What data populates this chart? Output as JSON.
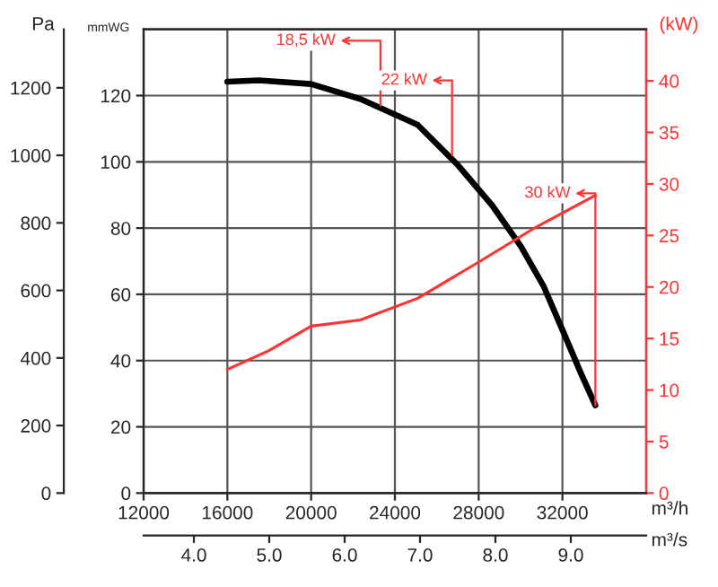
{
  "chart_data": {
    "type": "line",
    "xlabel": "m³/h",
    "x2label": "m³/s",
    "ylabel": "mmWG",
    "y2label": "(kW)",
    "y3label": "Pa",
    "xlim": [
      12000,
      36000
    ],
    "xticks": [
      12000,
      16000,
      20000,
      24000,
      28000,
      32000
    ],
    "x2lim": [
      3.333,
      10
    ],
    "x2ticks": [
      {
        "value": 4,
        "label": "4.0"
      },
      {
        "value": 5,
        "label": "5.0"
      },
      {
        "value": 6,
        "label": "6.0"
      },
      {
        "value": 7,
        "label": "7.0"
      },
      {
        "value": 8,
        "label": "8.0"
      },
      {
        "value": 9,
        "label": "9.0"
      }
    ],
    "ylim": [
      0,
      140
    ],
    "yticks": [
      0,
      20,
      40,
      60,
      80,
      100,
      120
    ],
    "y2lim": [
      0,
      45
    ],
    "y2ticks": [
      0,
      5,
      10,
      15,
      20,
      25,
      30,
      35,
      40
    ],
    "y3lim": [
      0,
      1373
    ],
    "y3ticks": [
      0,
      200,
      400,
      600,
      800,
      1000,
      1200
    ],
    "grid": true,
    "series": [
      {
        "color": "#000000",
        "x": [
          16000,
          17500,
          20000,
          22349,
          25085,
          27007,
          28649,
          30013,
          31113,
          32066,
          32887,
          33573
        ],
        "values": [
          124.2,
          124.6,
          123.5,
          119.0,
          111.2,
          99.0,
          86.8,
          74.5,
          62.3,
          48.3,
          36.1,
          26.5
        ]
      },
      {
        "color": "#ff3333",
        "axis": "y2",
        "x": [
          16000,
          17967,
          20000,
          22349,
          25085,
          27822,
          30562,
          33573
        ],
        "values": [
          12.0,
          13.8,
          16.2,
          16.8,
          18.9,
          22.2,
          25.6,
          28.9
        ]
      }
    ],
    "annotations": [
      {
        "text": "18,5 kW",
        "x": 23310,
        "y": 117
      },
      {
        "text": "22 kW",
        "x": 26730,
        "y": 102
      },
      {
        "text": "30 kW",
        "x": 33573,
        "y": 26.5
      }
    ]
  }
}
